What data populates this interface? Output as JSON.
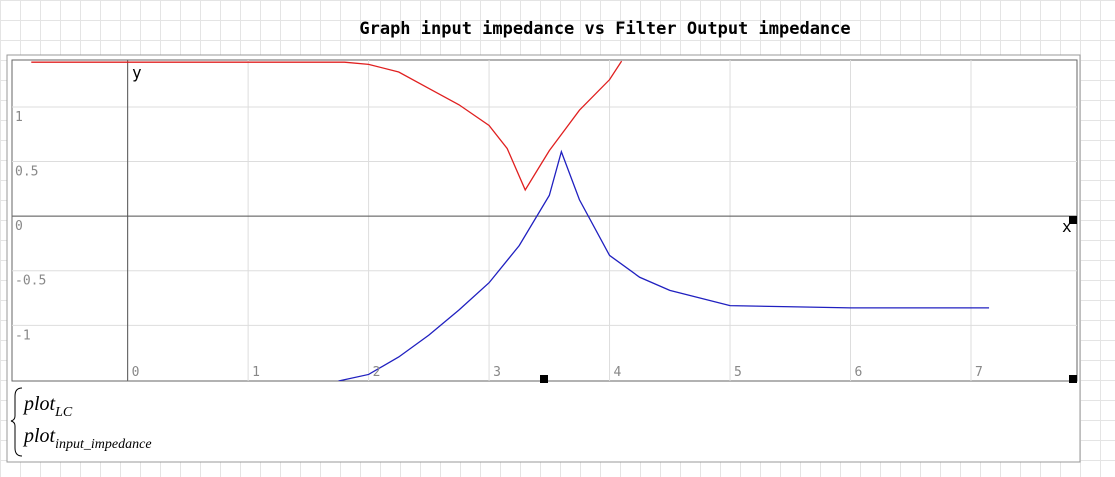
{
  "chart_data": {
    "type": "line",
    "title": "Graph input impedance vs Filter Output impedance",
    "x_label": "x",
    "y_label": "y",
    "xlim": [
      -0.96,
      7.88
    ],
    "ylim": [
      -1.51,
      1.43
    ],
    "xticks": [
      0,
      1,
      2,
      3,
      4,
      5,
      6,
      7
    ],
    "yticks": [
      -1,
      -0.5,
      0,
      0.5,
      1
    ],
    "grid": true,
    "series": [
      {
        "color": "#e02020",
        "x": [
          -0.8,
          0,
          1,
          1.8,
          2,
          2.25,
          2.5,
          2.75,
          3,
          3.15,
          3.3,
          3.4,
          3.5,
          3.75,
          4,
          4.1
        ],
        "values": [
          1.41,
          1.41,
          1.41,
          1.41,
          1.39,
          1.32,
          1.17,
          1.02,
          0.83,
          0.62,
          0.24,
          0.42,
          0.6,
          0.97,
          1.25,
          1.42
        ]
      },
      {
        "color": "#2020c0",
        "x": [
          1.75,
          2,
          2.25,
          2.5,
          2.75,
          3,
          3.25,
          3.5,
          3.6,
          3.75,
          4,
          4.25,
          4.5,
          5,
          5.5,
          6,
          7.15
        ],
        "values": [
          -1.51,
          -1.45,
          -1.29,
          -1.09,
          -0.86,
          -0.61,
          -0.27,
          0.19,
          0.59,
          0.15,
          -0.36,
          -0.56,
          -0.68,
          -0.82,
          -0.83,
          -0.84,
          -0.84
        ]
      }
    ]
  },
  "expressions": [
    {
      "base": "plot",
      "subscript": "LC"
    },
    {
      "base": "plot",
      "subscript": "input_impedance"
    }
  ]
}
